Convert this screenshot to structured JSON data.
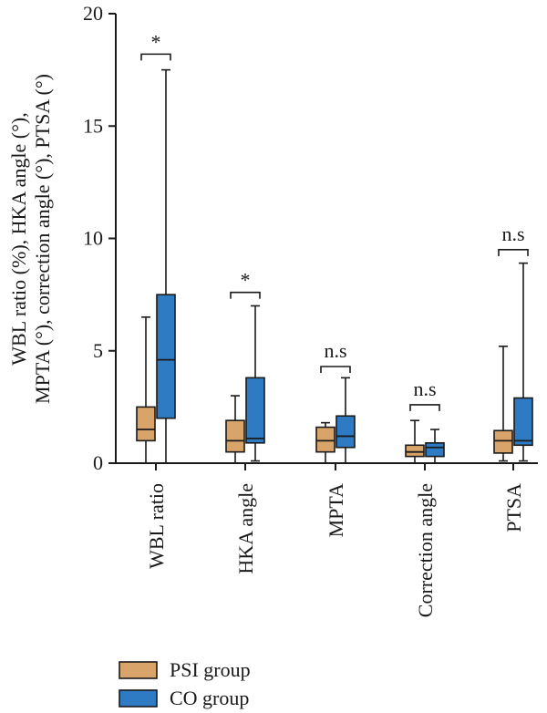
{
  "chart_data": {
    "type": "box",
    "ylabel_lines": [
      "WBL ratio (%), HKA angle (°),",
      "MPTA (°), correction angle (°), PTSA (°)"
    ],
    "ylim": [
      0,
      20
    ],
    "yticks": [
      0,
      5,
      10,
      15,
      20
    ],
    "categories": [
      "WBL ratio",
      "HKA angle",
      "MPTA",
      "Correction angle",
      "PTSA"
    ],
    "series": [
      {
        "name": "PSI group",
        "color": "#d9a46a",
        "boxes": [
          {
            "min": 0.0,
            "q1": 1.0,
            "median": 1.5,
            "q3": 2.5,
            "max": 6.5
          },
          {
            "min": 0.0,
            "q1": 0.5,
            "median": 1.0,
            "q3": 1.9,
            "max": 3.0
          },
          {
            "min": 0.0,
            "q1": 0.5,
            "median": 1.0,
            "q3": 1.6,
            "max": 1.8
          },
          {
            "min": 0.0,
            "q1": 0.3,
            "median": 0.5,
            "q3": 0.8,
            "max": 1.9
          },
          {
            "min": 0.1,
            "q1": 0.45,
            "median": 1.0,
            "q3": 1.45,
            "max": 5.2
          }
        ]
      },
      {
        "name": "CO group",
        "color": "#2e7bc4",
        "boxes": [
          {
            "min": 0.0,
            "q1": 2.0,
            "median": 4.6,
            "q3": 7.5,
            "max": 17.5
          },
          {
            "min": 0.1,
            "q1": 0.9,
            "median": 1.1,
            "q3": 3.8,
            "max": 7.0
          },
          {
            "min": 0.0,
            "q1": 0.7,
            "median": 1.2,
            "q3": 2.1,
            "max": 3.8
          },
          {
            "min": 0.0,
            "q1": 0.3,
            "median": 0.7,
            "q3": 0.9,
            "max": 1.5
          },
          {
            "min": 0.1,
            "q1": 0.8,
            "median": 1.0,
            "q3": 2.9,
            "max": 8.9
          }
        ]
      }
    ],
    "significance": [
      {
        "label": "*",
        "y": 18.2
      },
      {
        "label": "*",
        "y": 7.6
      },
      {
        "label": "n.s",
        "y": 4.3
      },
      {
        "label": "n.s",
        "y": 2.6
      },
      {
        "label": "n.s",
        "y": 9.5
      }
    ],
    "legend": [
      {
        "label": "PSI group",
        "color": "#d9a46a"
      },
      {
        "label": "CO group",
        "color": "#2e7bc4"
      }
    ],
    "legend_placement": "bottom-left",
    "grid": false
  }
}
